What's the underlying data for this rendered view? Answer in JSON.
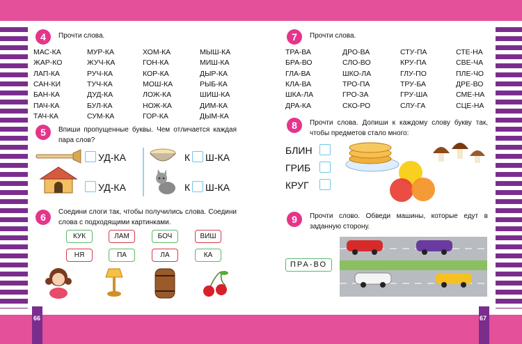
{
  "left_page": {
    "page_number": "66",
    "task_4": {
      "number": "4",
      "instruction": "Прочти слова.",
      "words": [
        [
          "МАС-КА",
          "МУР-КА",
          "ХОМ-КА",
          "МЫШ-КА"
        ],
        [
          "ЖАР-КО",
          "ЖУЧ-КА",
          "ГОН-КА",
          "МИШ-КА"
        ],
        [
          "ЛАП-КА",
          "РУЧ-КА",
          "КОР-КА",
          "ДЫР-КА"
        ],
        [
          "САН-КИ",
          "ТУЧ-КА",
          "МОШ-КА",
          "РЫБ-КА"
        ],
        [
          "БАН-КА",
          "ДУД-КА",
          "ЛОЖ-КА",
          "ШИШ-КА"
        ],
        [
          "ПАЧ-КА",
          "БУЛ-КА",
          "НОЖ-КА",
          "ДИМ-КА"
        ],
        [
          "ТАЧ-КА",
          "СУМ-КА",
          "ГОР-КА",
          "ДЫМ-КА"
        ]
      ]
    },
    "task_5": {
      "number": "5",
      "instruction": "Впиши пропущенные буквы. Чем отличается каждая пара слов?",
      "items": [
        {
          "suffix": "УД-КА"
        },
        {
          "prefix": "К",
          "suffix": "Ш-КА"
        },
        {
          "suffix": "УД-КА"
        },
        {
          "prefix": "К",
          "suffix": "Ш-КА"
        }
      ]
    },
    "task_6": {
      "number": "6",
      "instruction": "Соедини слоги так, чтобы получились слова. Соедини слова с подходящими картинками.",
      "top_syllables": [
        "КУК",
        "ЛАМ",
        "БОЧ",
        "ВИШ"
      ],
      "bottom_syllables": [
        "НЯ",
        "ПА",
        "ЛА",
        "КА"
      ]
    }
  },
  "right_page": {
    "page_number": "67",
    "task_7": {
      "number": "7",
      "instruction": "Прочти слова.",
      "words": [
        [
          "ТРА-ВА",
          "ДРО-ВА",
          "СТУ-ПА",
          "СТЕ-НА"
        ],
        [
          "БРА-ВО",
          "СЛО-ВО",
          "КРУ-ПА",
          "СВЕ-ЧА"
        ],
        [
          "ГЛА-ВА",
          "ШКО-ЛА",
          "ГЛУ-ПО",
          "ПЛЕ-ЧО"
        ],
        [
          "КЛА-ВА",
          "ТРО-ПА",
          "ТРУ-БА",
          "ДРЕ-ВО"
        ],
        [
          "ШКА-ЛА",
          "ГРО-ЗА",
          "ГРУ-ША",
          "СМЕ-НА"
        ],
        [
          "ДРА-КА",
          "СКО-РО",
          "СЛУ-ГА",
          "СЦЕ-НА"
        ]
      ]
    },
    "task_8": {
      "number": "8",
      "instruction": "Прочти слова. Допиши к каждому слову букву так, чтобы предметов стало много:",
      "words": [
        "БЛИН",
        "ГРИБ",
        "КРУГ"
      ]
    },
    "task_9": {
      "number": "9",
      "instruction": "Прочти слово. Обведи машины, которые едут в заданную сторону.",
      "word": "ПРА-ВО"
    }
  }
}
